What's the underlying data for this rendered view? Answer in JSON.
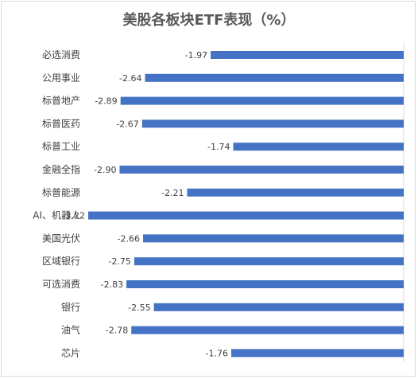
{
  "chart_data": {
    "type": "bar",
    "orientation": "horizontal",
    "title": "美股各板块ETF表现（%）",
    "categories": [
      "必选消费",
      "公用事业",
      "标普地产",
      "标普医药",
      "标普工业",
      "金融全指",
      "标普能源",
      "AI、机器人",
      "美国光伏",
      "区域银行",
      "可选消费",
      "银行",
      "油气",
      "芯片"
    ],
    "values": [
      -1.97,
      -2.64,
      -2.89,
      -2.67,
      -1.74,
      -2.9,
      -2.21,
      -3.22,
      -2.66,
      -2.75,
      -2.83,
      -2.55,
      -2.78,
      -1.76
    ],
    "value_labels": [
      "-1.97",
      "-2.64",
      "-2.89",
      "-2.67",
      "-1.74",
      "-2.90",
      "-2.21",
      "-3.22",
      "-2.66",
      "-2.75",
      "-2.83",
      "-2.55",
      "-2.78",
      "-1.76"
    ],
    "xlim": [
      -3.22,
      0
    ],
    "grid": false,
    "bar_color": "#4472c4"
  }
}
